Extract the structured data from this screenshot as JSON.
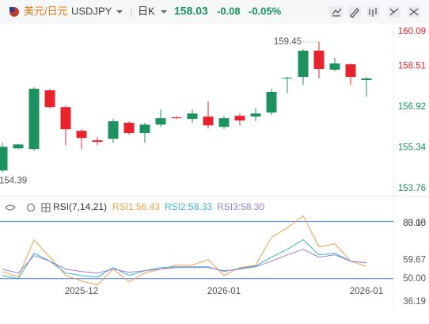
{
  "header": {
    "pair": "美元/日元",
    "symbol": "USDJPY",
    "period": "日K",
    "price": "158.03",
    "change": "-0.08",
    "change_pct": "-0.05%"
  },
  "chart_data": [
    {
      "type": "candlestick",
      "up_color": "#1e9160",
      "down_color": "#e8232d",
      "open": [
        154.46,
        155.32,
        155.29,
        157.57,
        156.92,
        156.0,
        155.63,
        155.69,
        156.31,
        155.91,
        156.24,
        156.52,
        156.46,
        156.55,
        156.15,
        156.58,
        156.55,
        156.71,
        158.03,
        158.09,
        159.11,
        158.37,
        158.58,
        157.97
      ],
      "high": [
        155.54,
        155.5,
        157.69,
        157.63,
        156.98,
        156.06,
        155.75,
        156.46,
        156.37,
        156.31,
        156.83,
        156.58,
        156.83,
        157.14,
        156.58,
        156.67,
        156.89,
        157.63,
        158.09,
        159.17,
        159.45,
        158.83,
        158.61,
        158.09
      ],
      "low": [
        154.39,
        155.29,
        155.23,
        156.86,
        155.44,
        155.29,
        155.44,
        155.54,
        155.84,
        155.54,
        156.15,
        156.46,
        156.31,
        156.09,
        156.06,
        156.21,
        156.37,
        156.61,
        157.47,
        157.78,
        158.03,
        158.31,
        157.78,
        157.32
      ],
      "close": [
        155.38,
        155.47,
        157.63,
        156.92,
        156.06,
        155.72,
        155.57,
        156.37,
        155.91,
        156.24,
        156.49,
        156.49,
        156.67,
        156.21,
        156.49,
        156.4,
        156.67,
        157.51,
        158.06,
        159.11,
        158.4,
        158.61,
        158.09,
        158.03
      ],
      "max_high": 159.45,
      "min_low": 154.39,
      "ylim": [
        153.76,
        160.09
      ],
      "yticks": [
        160.09,
        158.51,
        156.92,
        155.34,
        153.76
      ],
      "ytick_colors": [
        "#e8232d",
        "#e8232d",
        "#1e9160",
        "#1e9160",
        "#1e9160"
      ]
    },
    {
      "type": "line",
      "indicator": "RSI(7,14,21)",
      "categories": [
        null,
        null,
        null,
        null,
        null,
        "2025-12",
        null,
        null,
        null,
        null,
        null,
        null,
        null,
        null,
        "2026-01",
        null,
        null,
        null,
        null,
        null,
        null,
        null,
        null,
        "2026-01"
      ],
      "series": [
        {
          "name": "RSI1:56.43",
          "color": "#f0a048",
          "values": [
            53.75,
            50.83,
            70.42,
            61.25,
            51.67,
            48.75,
            46.67,
            55.0,
            48.33,
            52.92,
            55.0,
            57.08,
            57.08,
            60.0,
            51.67,
            55.83,
            57.08,
            71.67,
            76.67,
            83.0,
            66.67,
            68.33,
            59.17,
            56.43
          ]
        },
        {
          "name": "RSI2:58.33",
          "color": "#3cb6cf",
          "values": [
            51.67,
            50.0,
            63.33,
            59.17,
            52.92,
            51.67,
            50.83,
            55.83,
            51.67,
            54.17,
            55.83,
            56.25,
            56.25,
            56.25,
            53.75,
            55.42,
            56.67,
            61.25,
            65.42,
            70.42,
            62.5,
            63.33,
            59.17,
            58.33
          ]
        },
        {
          "name": "RSI3:58.30",
          "color": "#9b7fd3",
          "values": [
            55.0,
            52.92,
            62.08,
            59.17,
            55.0,
            53.75,
            52.92,
            55.0,
            53.33,
            54.17,
            55.0,
            55.83,
            55.83,
            55.83,
            54.17,
            55.0,
            56.25,
            59.17,
            62.5,
            65.42,
            61.25,
            62.5,
            59.17,
            58.3
          ]
        }
      ],
      "ylim": [
        36.19,
        83.15
      ],
      "yticks": [
        83.15,
        {
          "value": 80,
          "label": "80.00"
        },
        59.67,
        {
          "value": 50,
          "label": "50.00"
        },
        36.19
      ],
      "levels": [
        80,
        50
      ],
      "level_color": "#3b7ddd"
    }
  ]
}
